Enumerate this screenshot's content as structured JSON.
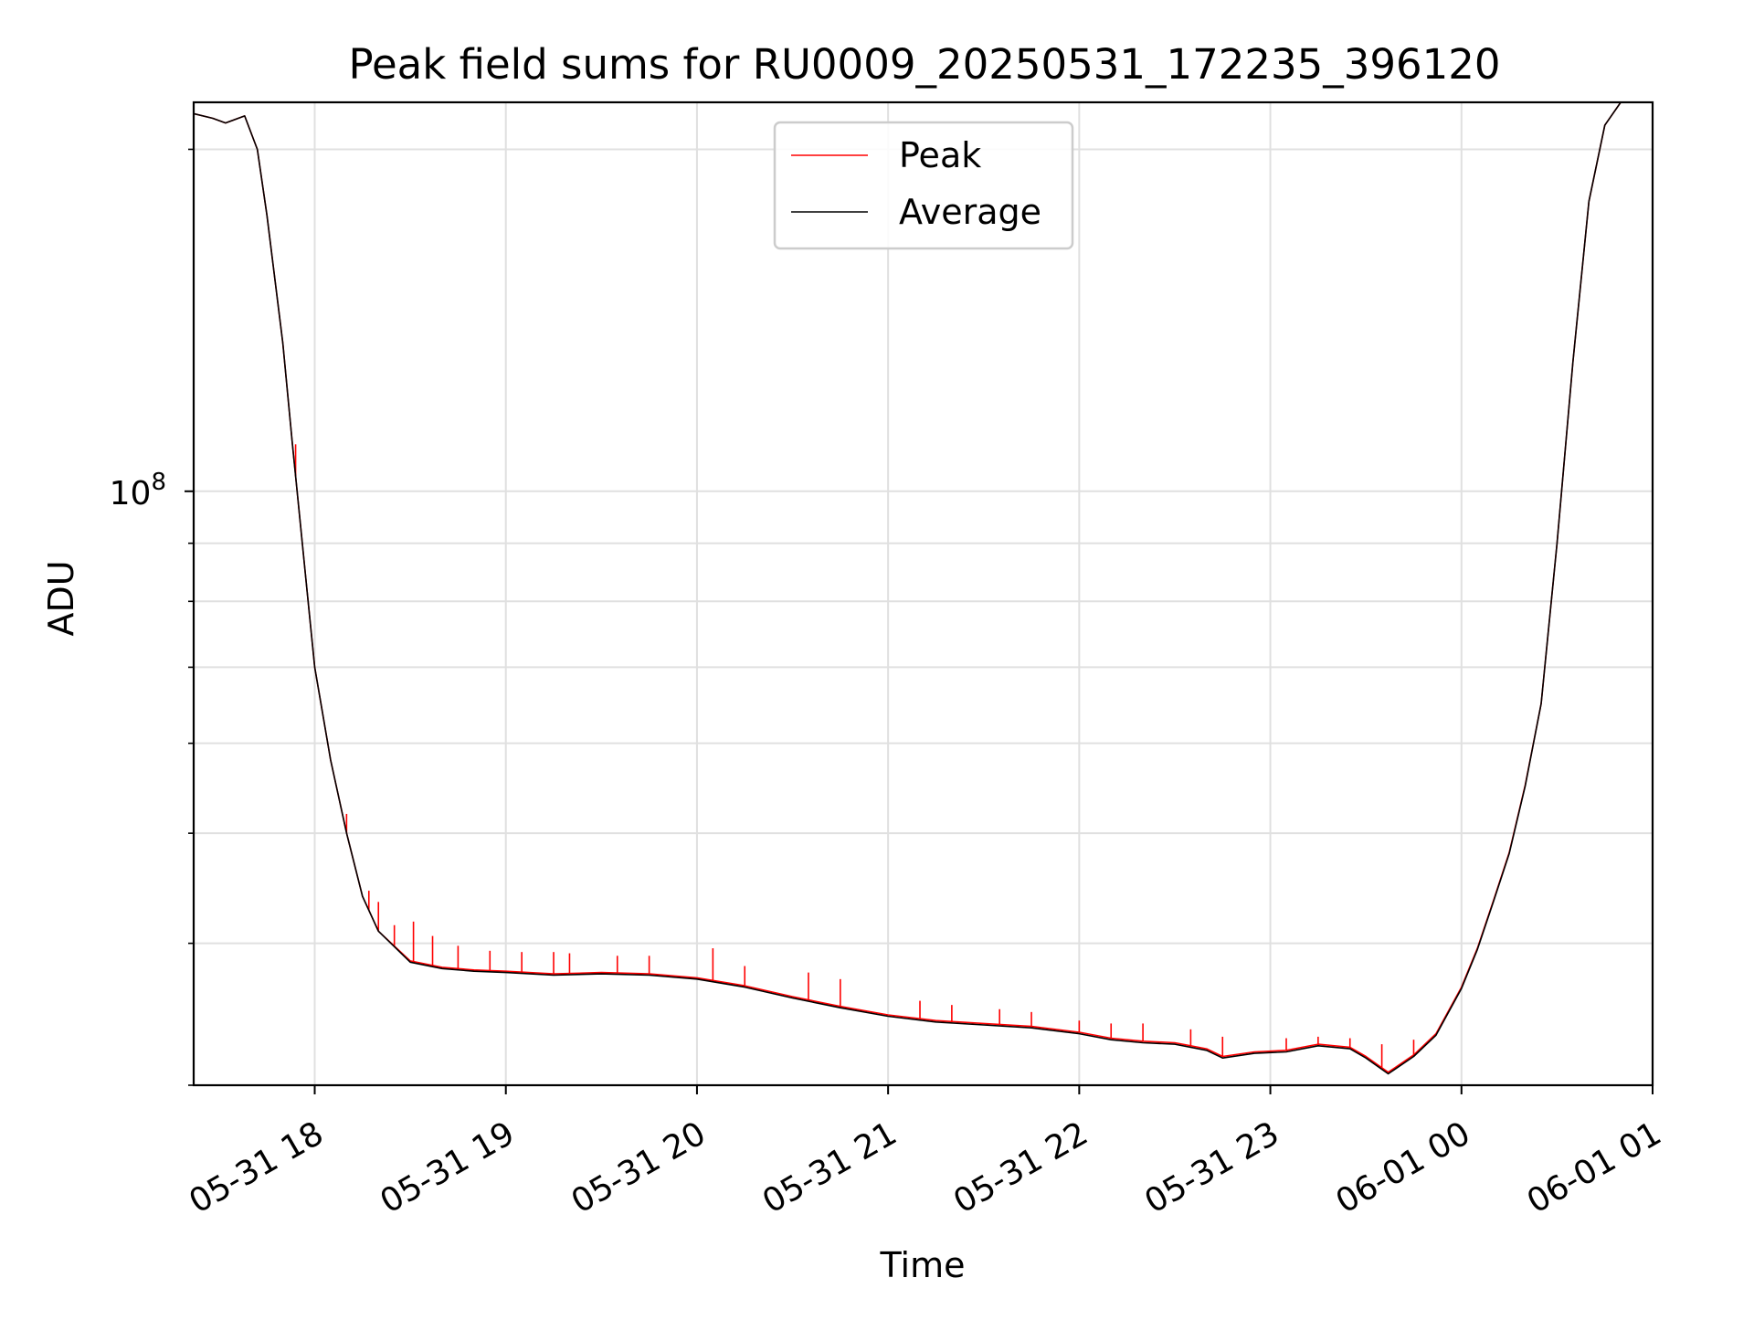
{
  "chart_data": {
    "type": "line",
    "title": "Peak field sums for RU0009_20250531_172235_396120",
    "xlabel": "Time",
    "ylabel": "ADU",
    "x_ticks": [
      "05-31 18",
      "05-31 19",
      "05-31 20",
      "05-31 21",
      "05-31 22",
      "05-31 23",
      "06-01 00",
      "06-01 01"
    ],
    "y_scale": "log",
    "y_ticks": [
      {
        "value": 100000000,
        "base": "10",
        "exponent": "8"
      }
    ],
    "xlim": [
      "2025-05-31 17:22",
      "2025-06-01 01:00"
    ],
    "ylim": [
      30000000,
      220000000
    ],
    "grid": true,
    "legend": {
      "placement": "upper center",
      "entries": [
        "Peak",
        "Average"
      ]
    },
    "colors": {
      "Peak": "#ff0000",
      "Average": "#000000"
    },
    "series": [
      {
        "name": "Average",
        "color": "#000000",
        "x": [
          "2025-05-31 17:22",
          "2025-05-31 17:28",
          "2025-05-31 17:32",
          "2025-05-31 17:38",
          "2025-05-31 17:42",
          "2025-05-31 17:45",
          "2025-05-31 17:50",
          "2025-05-31 17:53",
          "2025-05-31 17:57",
          "2025-05-31 18:00",
          "2025-05-31 18:05",
          "2025-05-31 18:10",
          "2025-05-31 18:15",
          "2025-05-31 18:20",
          "2025-05-31 18:30",
          "2025-05-31 18:40",
          "2025-05-31 18:50",
          "2025-05-31 19:00",
          "2025-05-31 19:15",
          "2025-05-31 19:30",
          "2025-05-31 19:45",
          "2025-05-31 20:00",
          "2025-05-31 20:15",
          "2025-05-31 20:30",
          "2025-05-31 20:45",
          "2025-05-31 21:00",
          "2025-05-31 21:15",
          "2025-05-31 21:30",
          "2025-05-31 21:45",
          "2025-05-31 22:00",
          "2025-05-31 22:10",
          "2025-05-31 22:20",
          "2025-05-31 22:30",
          "2025-05-31 22:40",
          "2025-05-31 22:45",
          "2025-05-31 22:55",
          "2025-05-31 23:05",
          "2025-05-31 23:15",
          "2025-05-31 23:25",
          "2025-05-31 23:30",
          "2025-05-31 23:37",
          "2025-05-31 23:45",
          "2025-05-31 23:52",
          "2025-06-01 00:00",
          "2025-06-01 00:05",
          "2025-06-01 00:10",
          "2025-06-01 00:15",
          "2025-06-01 00:20",
          "2025-06-01 00:25",
          "2025-06-01 00:30",
          "2025-06-01 00:35",
          "2025-06-01 00:40",
          "2025-06-01 00:45",
          "2025-06-01 00:50",
          "2025-06-01 01:00"
        ],
        "y": [
          215000000,
          213000000,
          211000000,
          214000000,
          200000000,
          175000000,
          135000000,
          110000000,
          85000000,
          70000000,
          58000000,
          50000000,
          44000000,
          41000000,
          38500000,
          38000000,
          37800000,
          37700000,
          37500000,
          37600000,
          37500000,
          37200000,
          36600000,
          35800000,
          35100000,
          34500000,
          34100000,
          33900000,
          33700000,
          33300000,
          32900000,
          32700000,
          32600000,
          32200000,
          31700000,
          32000000,
          32100000,
          32500000,
          32300000,
          31700000,
          30700000,
          31800000,
          33200000,
          36500000,
          39500000,
          43500000,
          48000000,
          55000000,
          65000000,
          90000000,
          130000000,
          180000000,
          210000000,
          220000000,
          221000000
        ]
      },
      {
        "name": "Peak",
        "color": "#ff0000",
        "x": [
          "2025-05-31 17:22",
          "2025-05-31 17:28",
          "2025-05-31 17:32",
          "2025-05-31 17:38",
          "2025-05-31 17:42",
          "2025-05-31 17:45",
          "2025-05-31 17:50",
          "2025-05-31 17:53",
          "2025-05-31 17:57",
          "2025-05-31 18:00",
          "2025-05-31 18:05",
          "2025-05-31 18:10",
          "2025-05-31 18:15",
          "2025-05-31 18:20",
          "2025-05-31 18:30",
          "2025-05-31 18:40",
          "2025-05-31 18:50",
          "2025-05-31 19:00",
          "2025-05-31 19:15",
          "2025-05-31 19:30",
          "2025-05-31 19:45",
          "2025-05-31 20:00",
          "2025-05-31 20:15",
          "2025-05-31 20:30",
          "2025-05-31 20:45",
          "2025-05-31 21:00",
          "2025-05-31 21:15",
          "2025-05-31 21:30",
          "2025-05-31 21:45",
          "2025-05-31 22:00",
          "2025-05-31 22:10",
          "2025-05-31 22:20",
          "2025-05-31 22:30",
          "2025-05-31 22:40",
          "2025-05-31 22:45",
          "2025-05-31 22:55",
          "2025-05-31 23:05",
          "2025-05-31 23:15",
          "2025-05-31 23:25",
          "2025-05-31 23:30",
          "2025-05-31 23:37",
          "2025-05-31 23:45",
          "2025-05-31 23:52",
          "2025-06-01 00:00",
          "2025-06-01 00:05",
          "2025-06-01 00:10",
          "2025-06-01 00:15",
          "2025-06-01 00:20",
          "2025-06-01 00:25",
          "2025-06-01 00:30",
          "2025-06-01 00:35",
          "2025-06-01 00:40",
          "2025-06-01 00:45",
          "2025-06-01 00:50",
          "2025-06-01 01:00"
        ],
        "y": [
          215000000,
          213000000,
          211000000,
          214000000,
          200000000,
          175000000,
          135000000,
          110000000,
          85000000,
          70000000,
          58000000,
          50000000,
          44000000,
          41000000,
          38600000,
          38100000,
          37900000,
          37800000,
          37600000,
          37700000,
          37600000,
          37300000,
          36700000,
          35900000,
          35200000,
          34600000,
          34200000,
          34000000,
          33800000,
          33400000,
          33000000,
          32800000,
          32700000,
          32300000,
          31800000,
          32100000,
          32200000,
          32600000,
          32400000,
          31800000,
          30800000,
          31900000,
          33300000,
          36600000,
          39600000,
          43600000,
          48100000,
          55100000,
          65000000,
          90000000,
          130000000,
          180000000,
          210000000,
          220000000,
          221000000
        ],
        "spikes": [
          {
            "x": "2025-05-31 17:54",
            "y": 110000000
          },
          {
            "x": "2025-05-31 18:10",
            "y": 52000000
          },
          {
            "x": "2025-05-31 18:17",
            "y": 44500000
          },
          {
            "x": "2025-05-31 18:20",
            "y": 43500000
          },
          {
            "x": "2025-05-31 18:25",
            "y": 41500000
          },
          {
            "x": "2025-05-31 18:31",
            "y": 41800000
          },
          {
            "x": "2025-05-31 18:37",
            "y": 40600000
          },
          {
            "x": "2025-05-31 18:45",
            "y": 39800000
          },
          {
            "x": "2025-05-31 18:55",
            "y": 39400000
          },
          {
            "x": "2025-05-31 19:05",
            "y": 39300000
          },
          {
            "x": "2025-05-31 19:15",
            "y": 39300000
          },
          {
            "x": "2025-05-31 19:20",
            "y": 39200000
          },
          {
            "x": "2025-05-31 19:35",
            "y": 39000000
          },
          {
            "x": "2025-05-31 19:45",
            "y": 39000000
          },
          {
            "x": "2025-05-31 20:05",
            "y": 39600000
          },
          {
            "x": "2025-05-31 20:15",
            "y": 38200000
          },
          {
            "x": "2025-05-31 20:35",
            "y": 37700000
          },
          {
            "x": "2025-05-31 20:45",
            "y": 37200000
          },
          {
            "x": "2025-05-31 21:10",
            "y": 35600000
          },
          {
            "x": "2025-05-31 21:20",
            "y": 35300000
          },
          {
            "x": "2025-05-31 21:35",
            "y": 35000000
          },
          {
            "x": "2025-05-31 21:45",
            "y": 34800000
          },
          {
            "x": "2025-05-31 22:00",
            "y": 34200000
          },
          {
            "x": "2025-05-31 22:10",
            "y": 34000000
          },
          {
            "x": "2025-05-31 22:20",
            "y": 34000000
          },
          {
            "x": "2025-05-31 22:35",
            "y": 33600000
          },
          {
            "x": "2025-05-31 22:45",
            "y": 33100000
          },
          {
            "x": "2025-05-31 23:05",
            "y": 33000000
          },
          {
            "x": "2025-05-31 23:15",
            "y": 33100000
          },
          {
            "x": "2025-05-31 23:25",
            "y": 33000000
          },
          {
            "x": "2025-05-31 23:35",
            "y": 32600000
          },
          {
            "x": "2025-05-31 23:45",
            "y": 32900000
          }
        ]
      }
    ]
  }
}
